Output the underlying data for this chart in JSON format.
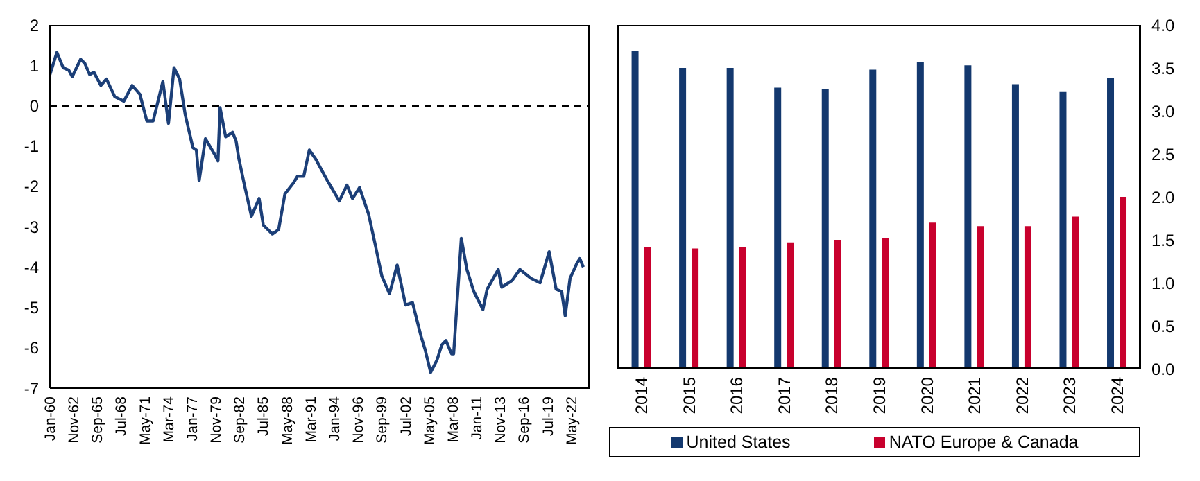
{
  "chart_data": [
    {
      "type": "line",
      "color": "#1c3f78",
      "line_style": "solid",
      "marker": "none",
      "x": [
        "1960-01",
        "1960-09",
        "1960-11",
        "1961-08",
        "1962-04",
        "1962-09",
        "1963-09",
        "1964-03",
        "1964-10",
        "1965-04",
        "1966-02",
        "1966-10",
        "1967-10",
        "1968-11",
        "1969-11",
        "1970-10",
        "1971-08",
        "1972-05",
        "1973-07",
        "1974-03",
        "1974-11",
        "1975-07",
        "1976-03",
        "1977-02",
        "1977-07",
        "1977-11",
        "1978-08",
        "1979-09",
        "1980-02",
        "1980-05",
        "1981-01",
        "1981-11",
        "1982-04",
        "1982-08",
        "1983-04",
        "1984-02",
        "1985-01",
        "1985-07",
        "1986-08",
        "1987-05",
        "1988-02",
        "1989-02",
        "1989-08",
        "1990-05",
        "1991-01",
        "1991-10",
        "1993-03",
        "1994-08",
        "1995-07",
        "1996-03",
        "1997-01",
        "1998-02",
        "1998-11",
        "1999-09",
        "2000-08",
        "2001-07",
        "2002-07",
        "2003-05",
        "2004-05",
        "2004-11",
        "2005-07",
        "2006-04",
        "2006-11",
        "2007-05",
        "2008-01",
        "2008-04",
        "2009-03",
        "2009-11",
        "2010-09",
        "2011-10",
        "2012-04",
        "2013-08",
        "2014-01",
        "2015-04",
        "2016-03",
        "2017-07",
        "2018-08",
        "2019-09",
        "2020-07",
        "2021-03",
        "2021-08",
        "2022-03",
        "2023-01",
        "2023-05",
        "2023-10"
      ],
      "values": [
        0.77,
        1.21,
        1.32,
        0.94,
        0.88,
        0.72,
        1.15,
        1.05,
        0.77,
        0.83,
        0.5,
        0.66,
        0.22,
        0.11,
        0.5,
        0.28,
        -0.38,
        -0.38,
        0.6,
        -0.44,
        0.94,
        0.66,
        -0.22,
        -1.04,
        -1.1,
        -1.86,
        -0.82,
        -1.2,
        -1.37,
        -0.05,
        -0.77,
        -0.66,
        -0.88,
        -1.32,
        -1.97,
        -2.74,
        -2.3,
        -2.96,
        -3.18,
        -3.07,
        -2.19,
        -1.92,
        -1.75,
        -1.75,
        -1.1,
        -1.32,
        -1.86,
        -2.36,
        -1.97,
        -2.3,
        -2.03,
        -2.69,
        -3.4,
        -4.22,
        -4.66,
        -3.95,
        -4.94,
        -4.88,
        -5.7,
        -6.04,
        -6.61,
        -6.31,
        -5.93,
        -5.82,
        -6.15,
        -6.15,
        -3.29,
        -4.06,
        -4.61,
        -5.05,
        -4.55,
        -4.06,
        -4.5,
        -4.33,
        -4.06,
        -4.28,
        -4.39,
        -3.62,
        -4.55,
        -4.61,
        -5.21,
        -4.28,
        -3.9,
        -3.79,
        -4.0
      ],
      "xlim": [
        "1960-01",
        "2024-07"
      ],
      "xticks": [
        {
          "value": "1960-01",
          "label": "Jan-60"
        },
        {
          "value": "1962-11",
          "label": "Nov-62"
        },
        {
          "value": "1965-09",
          "label": "Sep-65"
        },
        {
          "value": "1968-07",
          "label": "Jul-68"
        },
        {
          "value": "1971-05",
          "label": "May-71"
        },
        {
          "value": "1974-03",
          "label": "Mar-74"
        },
        {
          "value": "1977-01",
          "label": "Jan-77"
        },
        {
          "value": "1979-11",
          "label": "Nov-79"
        },
        {
          "value": "1982-09",
          "label": "Sep-82"
        },
        {
          "value": "1985-07",
          "label": "Jul-85"
        },
        {
          "value": "1988-05",
          "label": "May-88"
        },
        {
          "value": "1991-03",
          "label": "Mar-91"
        },
        {
          "value": "1994-01",
          "label": "Jan-94"
        },
        {
          "value": "1996-11",
          "label": "Nov-96"
        },
        {
          "value": "1999-09",
          "label": "Sep-99"
        },
        {
          "value": "2002-07",
          "label": "Jul-02"
        },
        {
          "value": "2005-05",
          "label": "May-05"
        },
        {
          "value": "2008-03",
          "label": "Mar-08"
        },
        {
          "value": "2011-01",
          "label": "Jan-11"
        },
        {
          "value": "2013-11",
          "label": "Nov-13"
        },
        {
          "value": "2016-09",
          "label": "Sep-16"
        },
        {
          "value": "2019-07",
          "label": "Jul-19"
        },
        {
          "value": "2022-05",
          "label": "May-22"
        }
      ],
      "ylim": [
        -7,
        2
      ],
      "yticks": [
        -7,
        -6,
        -5,
        -4,
        -3,
        -2,
        -1,
        0,
        1,
        2
      ],
      "ref_lines": [
        {
          "axis": "y",
          "value": 0,
          "color": "#000000",
          "line_style": "dashed"
        }
      ]
    },
    {
      "type": "bar",
      "legend": "bottom",
      "categories": [
        "2014",
        "2015",
        "2016",
        "2017",
        "2018",
        "2019",
        "2020",
        "2021",
        "2022",
        "2023",
        "2024"
      ],
      "series": [
        {
          "name": "United States",
          "color": "#13386e",
          "values": [
            3.7,
            3.5,
            3.5,
            3.27,
            3.25,
            3.48,
            3.57,
            3.53,
            3.31,
            3.22,
            3.38
          ]
        },
        {
          "name": "NATO Europe & Canada",
          "color": "#c8002d",
          "values": [
            1.42,
            1.4,
            1.42,
            1.47,
            1.5,
            1.52,
            1.7,
            1.66,
            1.66,
            1.77,
            2.0
          ]
        }
      ],
      "ylim": [
        0,
        4
      ],
      "yticks": [
        {
          "value": 0,
          "label": "0.0"
        },
        {
          "value": 0.5,
          "label": "0.5"
        },
        {
          "value": 1,
          "label": "1.0"
        },
        {
          "value": 1.5,
          "label": "1.5"
        },
        {
          "value": 2,
          "label": "2.0"
        },
        {
          "value": 2.5,
          "label": "2.5"
        },
        {
          "value": 3,
          "label": "3.0"
        },
        {
          "value": 3.5,
          "label": "3.5"
        },
        {
          "value": 4,
          "label": "4.0"
        }
      ]
    }
  ]
}
